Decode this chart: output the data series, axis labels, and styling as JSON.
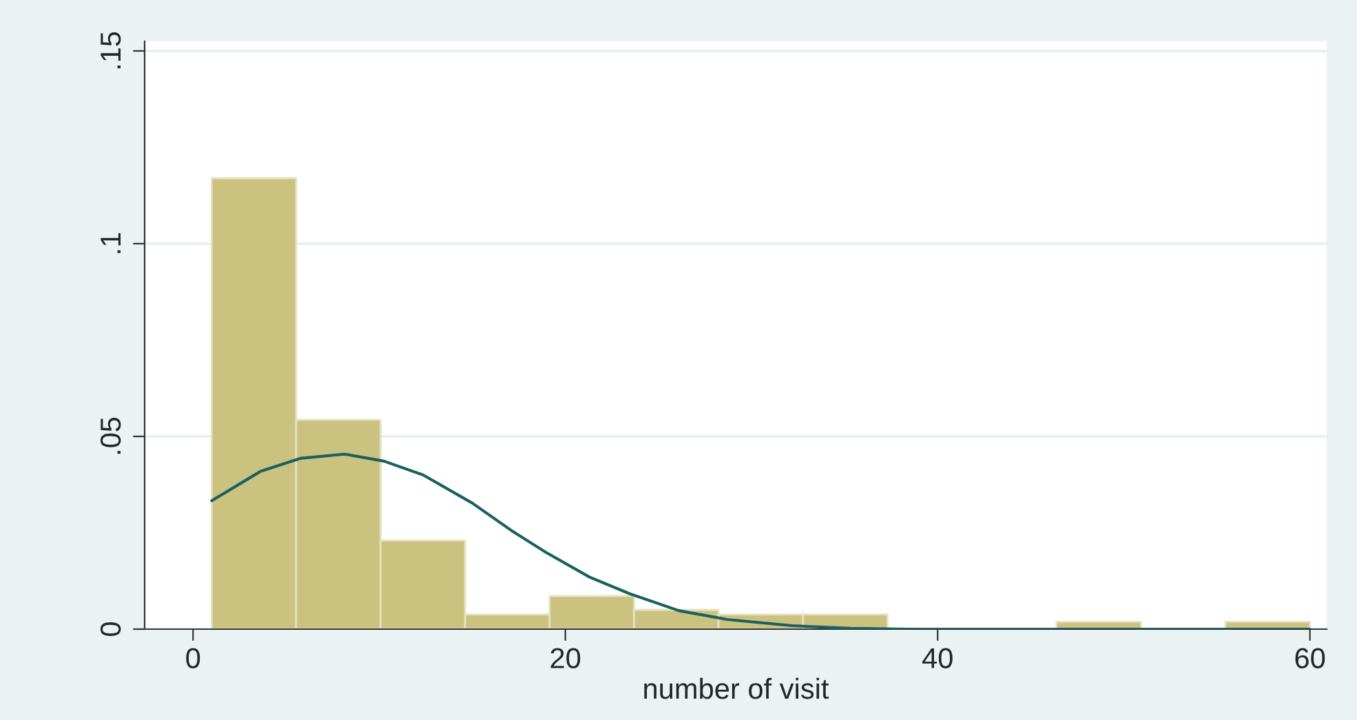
{
  "chart_data": {
    "type": "histogram",
    "xlabel": "number of visit",
    "bins": [
      1,
      5.538,
      10.077,
      14.615,
      19.154,
      23.692,
      28.231,
      32.769,
      37.308,
      41.846,
      46.385,
      50.923,
      55.462,
      60
    ],
    "values": [
      0.117,
      0.0543,
      0.023,
      0.0038,
      0.0086,
      0.005,
      0.0038,
      0.0038,
      0,
      0,
      0.0019,
      0,
      0.0019
    ],
    "color": "#cbc27f",
    "series": [
      {
        "type": "line",
        "color": "#1a6060",
        "x": [
          1.0,
          3.65,
          5.76,
          8.14,
          10.25,
          12.36,
          15.0,
          17.1,
          18.96,
          21.3,
          23.45,
          26.1,
          28.7,
          32.2,
          35.3,
          38.5,
          60
        ],
        "values": [
          0.0333,
          0.041,
          0.0443,
          0.0454,
          0.0436,
          0.04,
          0.0327,
          0.0256,
          0.0199,
          0.0135,
          0.0092,
          0.0048,
          0.0025,
          0.0009,
          0.0002,
          0,
          0
        ]
      }
    ],
    "xlim": [
      -2.6,
      60.9
    ],
    "xticks": [
      0,
      20,
      40,
      60
    ],
    "ylim": [
      0,
      0.1525
    ],
    "yticks": [
      {
        "value": 0,
        "label": "0"
      },
      {
        "value": 0.05,
        "label": ".05"
      },
      {
        "value": 0.1,
        "label": ".1"
      },
      {
        "value": 0.15,
        "label": ".15"
      }
    ],
    "grid": "y"
  }
}
